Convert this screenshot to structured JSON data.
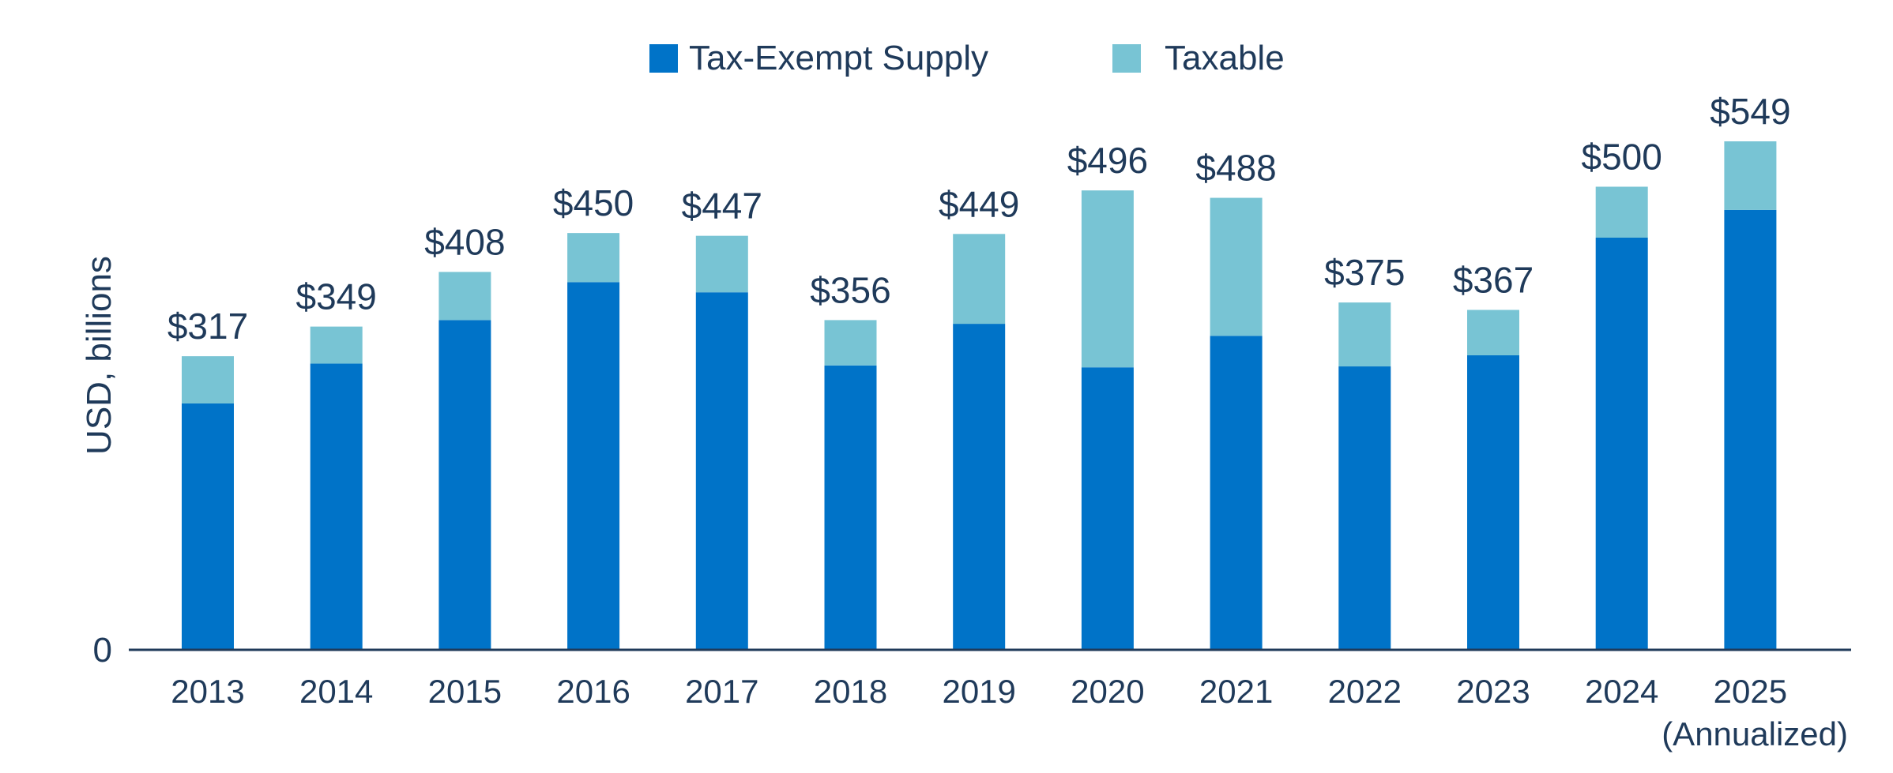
{
  "chart_data": {
    "type": "bar",
    "stacked": true,
    "title": "",
    "xlabel": "",
    "ylabel": "USD, billions",
    "ylim": [
      0,
      549
    ],
    "y_ticks": [
      "0"
    ],
    "categories": [
      "2013",
      "2014",
      "2015",
      "2016",
      "2017",
      "2018",
      "2019",
      "2020",
      "2021",
      "2022",
      "2023",
      "2024",
      "2025"
    ],
    "category_sublabels": {
      "2025": "(Annualized)"
    },
    "series": [
      {
        "name": "Tax-Exempt Supply",
        "color": "#0073c8",
        "values": [
          266,
          309,
          356,
          397,
          386,
          307,
          352,
          305,
          339,
          306,
          318,
          445,
          475
        ]
      },
      {
        "name": "Taxable",
        "color": "#78c4d4",
        "values": [
          51,
          40,
          52,
          53,
          61,
          49,
          97,
          191,
          149,
          69,
          49,
          55,
          74
        ]
      }
    ],
    "totals": [
      317,
      349,
      408,
      450,
      447,
      356,
      449,
      496,
      488,
      375,
      367,
      500,
      549
    ],
    "data_labels": [
      "$317",
      "$349",
      "$408",
      "$450",
      "$447",
      "$356",
      "$449",
      "$496",
      "$488",
      "$375",
      "$367",
      "$500",
      "$549"
    ],
    "legend_position": "top-center",
    "grid": false
  }
}
